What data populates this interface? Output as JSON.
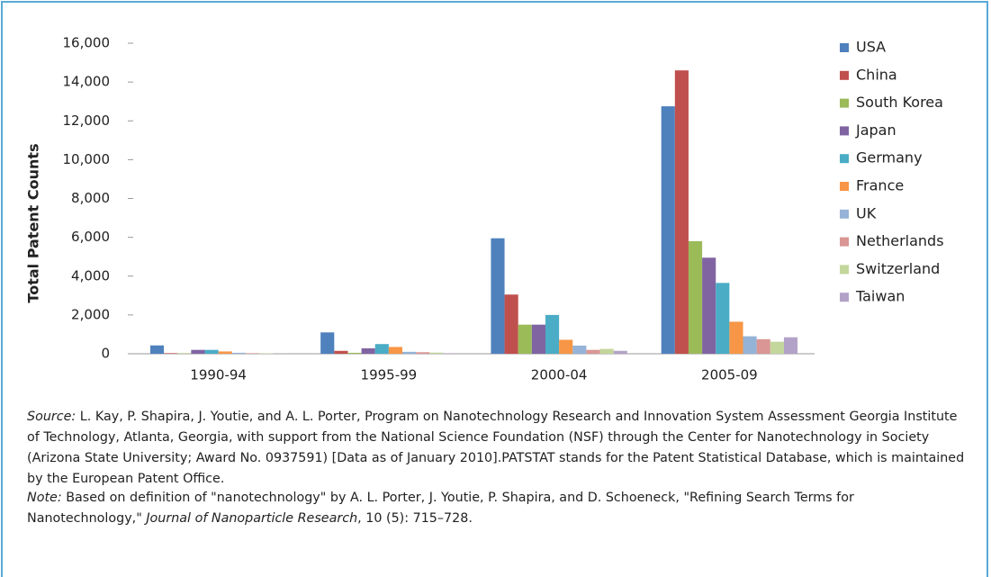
{
  "chart_data": {
    "type": "bar",
    "y_label": "Total Patent Counts",
    "categories": [
      "1990-94",
      "1995-99",
      "2000-04",
      "2005-09"
    ],
    "series": [
      {
        "name": "USA",
        "color": "#4f81bd",
        "values": [
          430,
          1100,
          5950,
          12750
        ]
      },
      {
        "name": "China",
        "color": "#c0504d",
        "values": [
          30,
          150,
          3050,
          14600
        ]
      },
      {
        "name": "South Korea",
        "color": "#9bbb59",
        "values": [
          20,
          50,
          1500,
          5800
        ]
      },
      {
        "name": "Japan",
        "color": "#8064a2",
        "values": [
          200,
          280,
          1500,
          4950
        ]
      },
      {
        "name": "Germany",
        "color": "#4bacc6",
        "values": [
          200,
          500,
          2000,
          3650
        ]
      },
      {
        "name": "France",
        "color": "#f79646",
        "values": [
          120,
          350,
          720,
          1650
        ]
      },
      {
        "name": "UK",
        "color": "#95b3d7",
        "values": [
          50,
          100,
          420,
          900
        ]
      },
      {
        "name": "Netherlands",
        "color": "#d99694",
        "values": [
          30,
          80,
          200,
          750
        ]
      },
      {
        "name": "Switzerland",
        "color": "#c3d69b",
        "values": [
          20,
          60,
          250,
          620
        ]
      },
      {
        "name": "Taiwan",
        "color": "#b3a2c7",
        "values": [
          10,
          30,
          150,
          850
        ]
      }
    ],
    "ylim": [
      0,
      16000
    ],
    "yticks": [
      0,
      {
        "value": 2000,
        "label": "2,000"
      },
      {
        "value": 4000,
        "label": "4,000"
      },
      {
        "value": 6000,
        "label": "6,000"
      },
      {
        "value": 8000,
        "label": "8,000"
      },
      {
        "value": 10000,
        "label": "10,000"
      },
      {
        "value": 12000,
        "label": "12,000"
      },
      {
        "value": 14000,
        "label": "14,000"
      },
      {
        "value": 16000,
        "label": "16,000"
      }
    ],
    "grid": false,
    "legend": "right"
  },
  "source": {
    "label": "Source:",
    "text": " L. Kay, P. Shapira, J. Youtie, and A. L. Porter, Program on Nanotechnology Research and Innovation System Assessment Georgia Institute of Technology, Atlanta, Georgia, with support from the National Science Foundation (NSF) through the Center for Nanotechnology in Society (Arizona State University; Award No. 0937591) [Data as of January 2010].PATSTAT stands for the Patent Statistical Database, which is maintained by the European Patent Office."
  },
  "note": {
    "label": "Note:",
    "text": " Based on definition of \"nanotechnology\" by A. L. Porter, J. Youtie, P. Shapira, and D. Schoeneck, \"Refining Search Terms for Nanotechnology,\" ",
    "journal": "Journal of Nanoparticle Research",
    "citation": ", 10 (5): 715–728."
  }
}
